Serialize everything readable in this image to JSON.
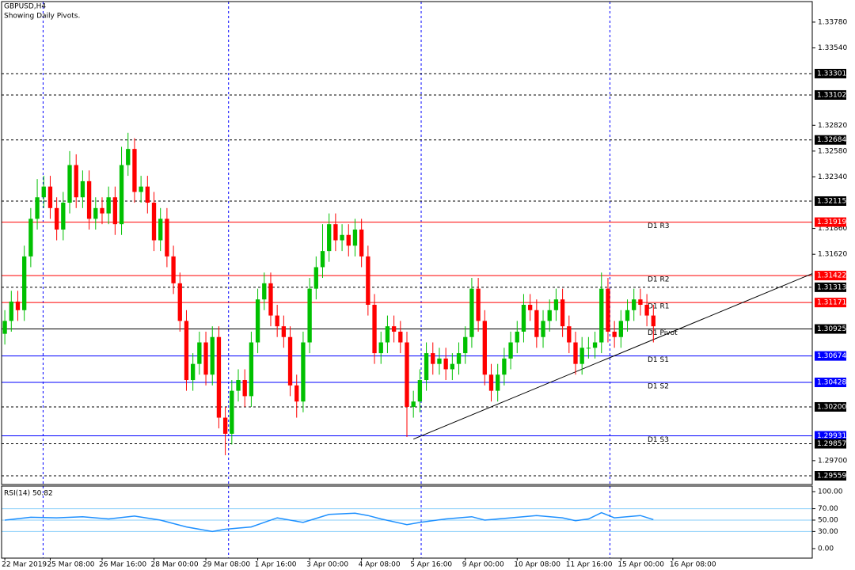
{
  "chart_data": {
    "type": "candlestick",
    "title": "GBPUSD,H4",
    "subtitle": "Showing Daily Pivots.",
    "xlim": [
      -0.5,
      124.5
    ],
    "x_ticks": [
      {
        "value": 0,
        "label": "22 Mar 2019"
      },
      {
        "value": 7,
        "label": "25 Mar 08:00"
      },
      {
        "value": 15,
        "label": "26 Mar 16:00"
      },
      {
        "value": 23,
        "label": "28 Mar 00:00"
      },
      {
        "value": 31,
        "label": "29 Mar 08:00"
      },
      {
        "value": 39,
        "label": "1 Apr 16:00"
      },
      {
        "value": 47,
        "label": "3 Apr 00:00"
      },
      {
        "value": 55,
        "label": "4 Apr 08:00"
      },
      {
        "value": 63,
        "label": "5 Apr 16:00"
      },
      {
        "value": 71,
        "label": "9 Apr 00:00"
      },
      {
        "value": 79,
        "label": "10 Apr 08:00"
      },
      {
        "value": 87,
        "label": "11 Apr 16:00"
      },
      {
        "value": 95,
        "label": "15 Apr 00:00"
      },
      {
        "value": 103,
        "label": "16 Apr 08:00"
      }
    ],
    "period_separators": [
      5.9,
      34.5,
      64.2,
      93.3
    ],
    "ylim": [
      1.29478,
      1.33971
    ],
    "yticks": [
      {
        "value": 1.3378,
        "label": "1.33780"
      },
      {
        "value": 1.3354,
        "label": "1.33540"
      },
      {
        "value": 1.3282,
        "label": "1.32820"
      },
      {
        "value": 1.3258,
        "label": "1.32580"
      },
      {
        "value": 1.3234,
        "label": "1.32340"
      },
      {
        "value": 1.3186,
        "label": "1.31860"
      },
      {
        "value": 1.3162,
        "label": "1.31620"
      },
      {
        "value": 1.297,
        "label": "1.29700"
      }
    ],
    "up_color": "#00c000",
    "down_color": "#ff0000",
    "open": [
      1.3088,
      1.31,
      1.3118,
      1.311,
      1.316,
      1.3195,
      1.3215,
      1.3225,
      1.3205,
      1.3185,
      1.321,
      1.3245,
      1.3215,
      1.323,
      1.3195,
      1.3205,
      1.32,
      1.3215,
      1.319,
      1.3245,
      1.326,
      1.322,
      1.3225,
      1.321,
      1.3175,
      1.3195,
      1.316,
      1.3135,
      1.31,
      1.3045,
      1.306,
      1.308,
      1.305,
      1.3085,
      1.301,
      1.2995,
      1.3035,
      1.3045,
      1.303,
      1.308,
      1.312,
      1.3135,
      1.3105,
      1.3095,
      1.3085,
      1.304,
      1.3025,
      1.308,
      1.313,
      1.315,
      1.3165,
      1.319,
      1.3175,
      1.318,
      1.317,
      1.3185,
      1.316,
      1.3115,
      1.307,
      1.308,
      1.3095,
      1.309,
      1.308,
      1.302,
      1.3025,
      1.3045,
      1.307,
      1.306,
      1.3065,
      1.3055,
      1.306,
      1.307,
      1.3085,
      1.313,
      1.31,
      1.305,
      1.3035,
      1.305,
      1.3065,
      1.308,
      1.309,
      1.3115,
      1.311,
      1.3085,
      1.31,
      1.311,
      1.312,
      1.3095,
      1.308,
      1.306,
      1.3075,
      1.3075,
      1.308,
      1.313,
      1.309,
      1.3085,
      1.31,
      1.311,
      1.312,
      1.3115,
      1.3105
    ],
    "high": [
      1.311,
      1.3128,
      1.3128,
      1.317,
      1.3205,
      1.3232,
      1.3235,
      1.3235,
      1.3215,
      1.322,
      1.3258,
      1.3255,
      1.324,
      1.324,
      1.3215,
      1.3215,
      1.3225,
      1.3225,
      1.3262,
      1.3275,
      1.327,
      1.3235,
      1.3235,
      1.322,
      1.3205,
      1.3205,
      1.317,
      1.3145,
      1.311,
      1.307,
      1.309,
      1.309,
      1.3095,
      1.3095,
      1.302,
      1.3045,
      1.3055,
      1.3055,
      1.309,
      1.313,
      1.3145,
      1.3145,
      1.3115,
      1.3105,
      1.3095,
      1.305,
      1.309,
      1.314,
      1.316,
      1.319,
      1.32,
      1.32,
      1.319,
      1.319,
      1.3195,
      1.3195,
      1.317,
      1.3125,
      1.309,
      1.3105,
      1.3105,
      1.31,
      1.309,
      1.3035,
      1.3055,
      1.308,
      1.308,
      1.3075,
      1.3075,
      1.307,
      1.308,
      1.3095,
      1.314,
      1.314,
      1.311,
      1.306,
      1.306,
      1.3075,
      1.309,
      1.31,
      1.3125,
      1.3125,
      1.312,
      1.311,
      1.312,
      1.313,
      1.313,
      1.3105,
      1.309,
      1.3085,
      1.3085,
      1.309,
      1.3145,
      1.314,
      1.31,
      1.311,
      1.312,
      1.313,
      1.313,
      1.3125,
      1.3115
    ],
    "low": [
      1.3078,
      1.309,
      1.31,
      1.31,
      1.315,
      1.3185,
      1.3205,
      1.3195,
      1.3175,
      1.3175,
      1.32,
      1.3205,
      1.3205,
      1.3185,
      1.3185,
      1.319,
      1.319,
      1.318,
      1.318,
      1.3235,
      1.321,
      1.321,
      1.32,
      1.3165,
      1.3165,
      1.315,
      1.3125,
      1.309,
      1.3035,
      1.3035,
      1.305,
      1.304,
      1.304,
      1.3,
      1.2975,
      1.2985,
      1.3025,
      1.302,
      1.302,
      1.307,
      1.311,
      1.3095,
      1.3085,
      1.3075,
      1.303,
      1.301,
      1.3015,
      1.307,
      1.312,
      1.314,
      1.3155,
      1.3165,
      1.3165,
      1.316,
      1.316,
      1.315,
      1.3105,
      1.306,
      1.306,
      1.307,
      1.308,
      1.307,
      1.2992,
      1.301,
      1.3015,
      1.3035,
      1.305,
      1.305,
      1.3045,
      1.3045,
      1.305,
      1.306,
      1.3075,
      1.309,
      1.304,
      1.3025,
      1.3025,
      1.304,
      1.3055,
      1.307,
      1.308,
      1.31,
      1.3075,
      1.3075,
      1.309,
      1.31,
      1.3085,
      1.307,
      1.305,
      1.305,
      1.3065,
      1.3065,
      1.307,
      1.308,
      1.3075,
      1.3075,
      1.309,
      1.31,
      1.3105,
      1.3095,
      1.308
    ],
    "close": [
      1.31,
      1.3118,
      1.311,
      1.316,
      1.3195,
      1.3215,
      1.3225,
      1.3205,
      1.3185,
      1.321,
      1.3245,
      1.3215,
      1.323,
      1.3195,
      1.3205,
      1.32,
      1.3215,
      1.319,
      1.3245,
      1.326,
      1.322,
      1.3225,
      1.321,
      1.3175,
      1.3195,
      1.316,
      1.3135,
      1.31,
      1.3045,
      1.306,
      1.308,
      1.305,
      1.3085,
      1.301,
      1.2995,
      1.3035,
      1.3045,
      1.303,
      1.308,
      1.312,
      1.3135,
      1.3105,
      1.3095,
      1.3085,
      1.304,
      1.3025,
      1.308,
      1.313,
      1.315,
      1.3165,
      1.319,
      1.3175,
      1.318,
      1.317,
      1.3185,
      1.316,
      1.3115,
      1.307,
      1.308,
      1.3095,
      1.309,
      1.308,
      1.302,
      1.3025,
      1.3045,
      1.307,
      1.306,
      1.3065,
      1.3055,
      1.306,
      1.307,
      1.3085,
      1.313,
      1.31,
      1.305,
      1.3035,
      1.305,
      1.3065,
      1.308,
      1.309,
      1.3115,
      1.311,
      1.3085,
      1.31,
      1.311,
      1.312,
      1.3095,
      1.308,
      1.306,
      1.3075,
      1.3075,
      1.308,
      1.313,
      1.309,
      1.3085,
      1.31,
      1.311,
      1.312,
      1.3115,
      1.3105,
      1.3095
    ],
    "levels": [
      {
        "value": 1.33301,
        "label": "1.33301",
        "color": "#000000",
        "style": "dashed"
      },
      {
        "value": 1.33102,
        "label": "1.33102",
        "color": "#000000",
        "style": "dashed"
      },
      {
        "value": 1.32684,
        "label": "1.32684",
        "color": "#000000",
        "style": "dashed"
      },
      {
        "value": 1.32115,
        "label": "1.32115",
        "color": "#000000",
        "style": "dashed"
      },
      {
        "value": 1.31919,
        "label": "1.31919",
        "color": "#ff0000",
        "style": "solid",
        "name": "D1 R3"
      },
      {
        "value": 1.31422,
        "label": "1.31422",
        "color": "#ff0000",
        "style": "solid",
        "name": "D1 R2"
      },
      {
        "value": 1.31313,
        "label": "1.31313",
        "color": "#000000",
        "style": "dashed"
      },
      {
        "value": 1.31171,
        "label": "1.31171",
        "color": "#ff0000",
        "style": "solid",
        "name": "D1 R1"
      },
      {
        "value": 1.30925,
        "label": "1.30925",
        "color": "#000000",
        "style": "solid",
        "name": "D1 Pivot"
      },
      {
        "value": 1.30674,
        "label": "1.30674",
        "color": "#0000ff",
        "style": "solid",
        "name": "D1 S1"
      },
      {
        "value": 1.30428,
        "label": "1.30428",
        "color": "#0000ff",
        "style": "solid",
        "name": "D1 S2"
      },
      {
        "value": 1.302,
        "label": "1.30200",
        "color": "#000000",
        "style": "dashed"
      },
      {
        "value": 1.29931,
        "label": "1.29931",
        "color": "#0000ff",
        "style": "solid",
        "name": "D1 S3"
      },
      {
        "value": 1.29857,
        "label": "1.29857",
        "color": "#000000",
        "style": "dashed"
      },
      {
        "value": 1.29559,
        "label": "1.29559",
        "color": "#000000",
        "style": "dashed"
      }
    ],
    "trendline": {
      "x": [
        63,
        124.5
      ],
      "y": [
        1.299,
        1.3144
      ],
      "color": "#000000"
    },
    "indicator": {
      "type": "line",
      "title": "RSI(14) 50.82",
      "color": "#1e90ff",
      "ylim": [
        -16.7,
        109.7
      ],
      "yticks": [
        {
          "value": 100,
          "label": "100.00"
        },
        {
          "value": 70,
          "label": "70.00"
        },
        {
          "value": 50,
          "label": "50.00"
        },
        {
          "value": 30,
          "label": "30.00"
        },
        {
          "value": 0,
          "label": "0.00"
        }
      ],
      "level_lines": [
        70,
        50,
        30
      ],
      "x": [
        0,
        4,
        8,
        12,
        16,
        20,
        24,
        28,
        32,
        34,
        38,
        42,
        46,
        50,
        54,
        56,
        58,
        62,
        64,
        68,
        72,
        74,
        78,
        82,
        86,
        88,
        90,
        92,
        94,
        98,
        100
      ],
      "values": [
        50,
        55,
        54,
        56,
        52,
        57,
        50,
        38,
        30,
        34,
        38,
        54,
        46,
        60,
        62,
        58,
        52,
        42,
        46,
        52,
        56,
        50,
        54,
        58,
        54,
        49,
        52,
        63,
        54,
        58,
        51
      ]
    }
  }
}
